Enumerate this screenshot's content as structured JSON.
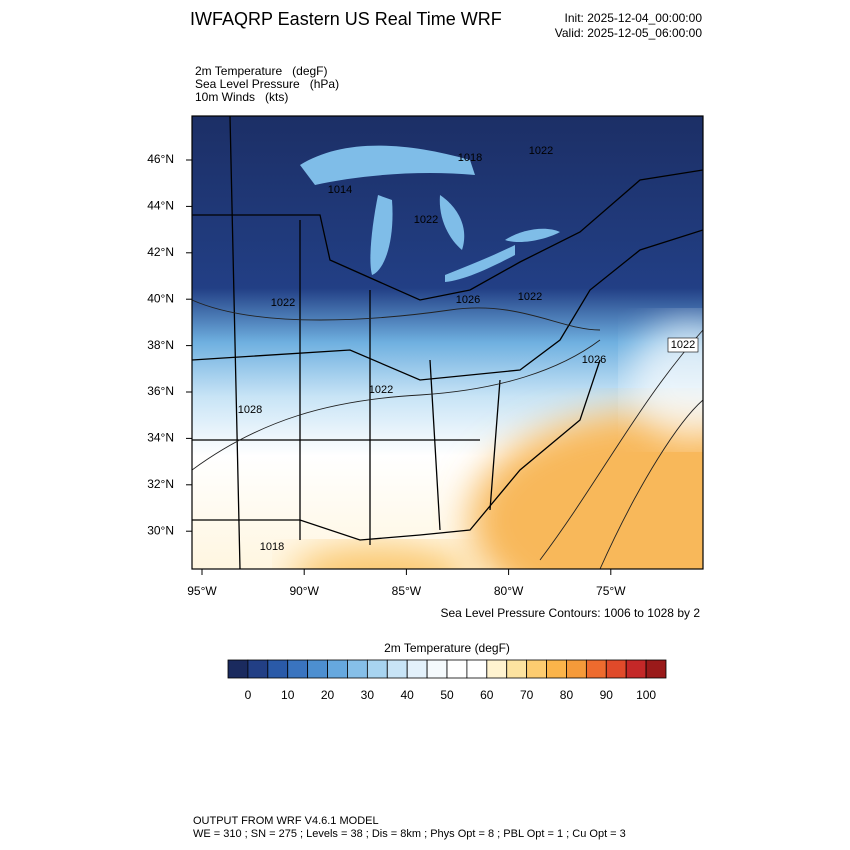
{
  "header": {
    "title": "IWFAQRP Eastern US Real Time WRF",
    "init": "Init: 2025-12-04_00:00:00",
    "valid": "Valid: 2025-12-05_06:00:00"
  },
  "fields": [
    "2m Temperature   (degF)",
    "Sea Level Pressure   (hPa)",
    "10m Winds   (kts)"
  ],
  "map": {
    "lat_labels": [
      "46°N",
      "44°N",
      "42°N",
      "40°N",
      "38°N",
      "36°N",
      "34°N",
      "32°N",
      "30°N"
    ],
    "lon_labels": [
      "95°W",
      "90°W",
      "85°W",
      "80°W",
      "75°W"
    ],
    "contour_labels": [
      "1018",
      "1022",
      "1014",
      "1022",
      "1022",
      "1026",
      "1022",
      "1026",
      "1022",
      "1022",
      "1028",
      "1018"
    ],
    "contour_note": "Sea Level Pressure Contours: 1006 to 1028 by 2"
  },
  "colorbar": {
    "title": "2m Temperature  (degF)",
    "lim": [
      -5,
      105
    ],
    "ticks": [
      0,
      10,
      20,
      30,
      40,
      50,
      60,
      70,
      80,
      90,
      100
    ],
    "colors": [
      "#1a2a5e",
      "#223f85",
      "#2a5aa8",
      "#3a74bf",
      "#4d8fd0",
      "#66a8de",
      "#86bfe8",
      "#a8d4f0",
      "#c8e4f6",
      "#e3f1fb",
      "#f5fafd",
      "#ffffff",
      "#ffffff",
      "#fff3d0",
      "#fde3a0",
      "#fdcc70",
      "#fbb44a",
      "#f59a3a",
      "#ee6b2e",
      "#e04a2a",
      "#c42828",
      "#9a1a1a"
    ]
  },
  "footer": {
    "line1": "OUTPUT FROM WRF V4.6.1 MODEL",
    "line2": "WE = 310 ; SN = 275 ; Levels = 38 ; Dis = 8km ; Phys Opt = 8 ; PBL Opt = 1 ; Cu Opt = 3"
  }
}
